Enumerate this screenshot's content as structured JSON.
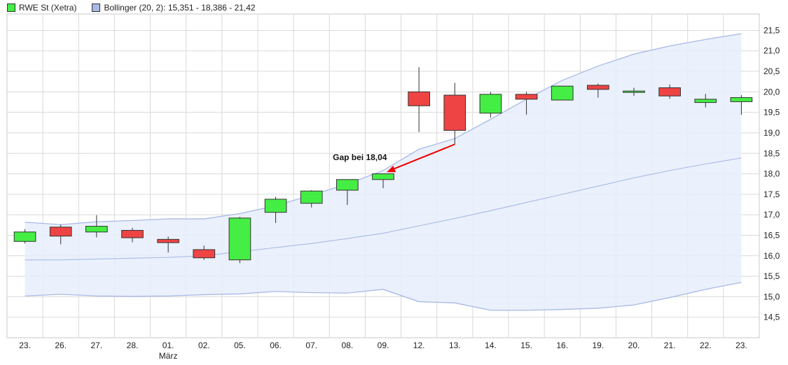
{
  "chart_data": {
    "type": "candlestick",
    "legend": [
      {
        "name": "RWE St (Xetra)",
        "color": "#44ee44"
      },
      {
        "name": "Bollinger (20, 2): 15,351 - 18,386 - 21,42",
        "color": "#a9b9e6"
      }
    ],
    "x_labels": [
      "23.",
      "26.",
      "27.",
      "28.",
      "01.",
      "02.",
      "05.",
      "06.",
      "07.",
      "08.",
      "09.",
      "12.",
      "13.",
      "14.",
      "15.",
      "16.",
      "19.",
      "20.",
      "21.",
      "22.",
      "23."
    ],
    "x_sublabels": {
      "4": "März"
    },
    "y_ticks": [
      "14,5",
      "15,0",
      "15,5",
      "16,0",
      "16,5",
      "17,0",
      "17,5",
      "18,0",
      "18,5",
      "19,0",
      "19,5",
      "20,0",
      "20,5",
      "21,0",
      "21,5"
    ],
    "y_tick_values": [
      14.5,
      15.0,
      15.5,
      16.0,
      16.5,
      17.0,
      17.5,
      18.0,
      18.5,
      19.0,
      19.5,
      20.0,
      20.5,
      21.0,
      21.5
    ],
    "ylim": [
      14.0,
      21.9
    ],
    "candles": [
      {
        "open": 16.35,
        "high": 16.65,
        "low": 16.3,
        "close": 16.58
      },
      {
        "open": 16.7,
        "high": 16.76,
        "low": 16.28,
        "close": 16.48
      },
      {
        "open": 16.58,
        "high": 16.99,
        "low": 16.45,
        "close": 16.72
      },
      {
        "open": 16.62,
        "high": 16.68,
        "low": 16.33,
        "close": 16.44
      },
      {
        "open": 16.4,
        "high": 16.47,
        "low": 16.08,
        "close": 16.32
      },
      {
        "open": 16.15,
        "high": 16.25,
        "low": 15.9,
        "close": 15.95
      },
      {
        "open": 15.9,
        "high": 16.95,
        "low": 15.82,
        "close": 16.92
      },
      {
        "open": 17.06,
        "high": 17.44,
        "low": 16.8,
        "close": 17.38
      },
      {
        "open": 17.28,
        "high": 17.6,
        "low": 17.18,
        "close": 17.58
      },
      {
        "open": 17.6,
        "high": 17.86,
        "low": 17.24,
        "close": 17.86
      },
      {
        "open": 17.86,
        "high": 18.0,
        "low": 17.65,
        "close": 18.0
      },
      {
        "open": 20.0,
        "high": 20.6,
        "low": 19.02,
        "close": 19.66
      },
      {
        "open": 19.92,
        "high": 20.22,
        "low": 18.72,
        "close": 19.06
      },
      {
        "open": 19.48,
        "high": 20.0,
        "low": 19.37,
        "close": 19.94
      },
      {
        "open": 19.94,
        "high": 20.0,
        "low": 19.44,
        "close": 19.82
      },
      {
        "open": 19.8,
        "high": 20.15,
        "low": 19.8,
        "close": 20.14
      },
      {
        "open": 20.16,
        "high": 20.2,
        "low": 19.86,
        "close": 20.06
      },
      {
        "open": 20.02,
        "high": 20.1,
        "low": 19.9,
        "close": 20.02
      },
      {
        "open": 20.1,
        "high": 20.18,
        "low": 19.83,
        "close": 19.9
      },
      {
        "open": 19.74,
        "high": 19.95,
        "low": 19.62,
        "close": 19.82
      },
      {
        "open": 19.76,
        "high": 19.92,
        "low": 19.44,
        "close": 19.86
      }
    ],
    "bollinger_upper": [
      16.82,
      16.76,
      16.83,
      16.86,
      16.9,
      16.9,
      17.03,
      17.22,
      17.48,
      17.75,
      18.08,
      18.6,
      18.86,
      19.33,
      19.82,
      20.28,
      20.63,
      20.92,
      21.12,
      21.28,
      21.42
    ],
    "bollinger_middle": [
      15.9,
      15.9,
      15.92,
      15.94,
      15.96,
      16.0,
      16.1,
      16.2,
      16.3,
      16.42,
      16.55,
      16.73,
      16.91,
      17.1,
      17.3,
      17.5,
      17.7,
      17.9,
      18.08,
      18.24,
      18.386
    ],
    "bollinger_lower": [
      15.02,
      15.06,
      15.02,
      15.01,
      15.02,
      15.05,
      15.07,
      15.13,
      15.1,
      15.09,
      15.18,
      14.88,
      14.85,
      14.67,
      14.67,
      14.69,
      14.72,
      14.8,
      14.98,
      15.18,
      15.35
    ],
    "annotation": {
      "text": "Gap bei 18,04",
      "from_index": 12.0,
      "from_value": 18.72,
      "to_index": 10.1,
      "to_value": 18.04
    },
    "colors": {
      "up": "#44ee44",
      "down": "#ee4444",
      "band_fill": "#e6eefb",
      "band_line": "#a9b9e6",
      "grid": "#d9d9d9",
      "arrow": "#ee0000"
    },
    "grid": true,
    "legend_position": "top-left"
  }
}
